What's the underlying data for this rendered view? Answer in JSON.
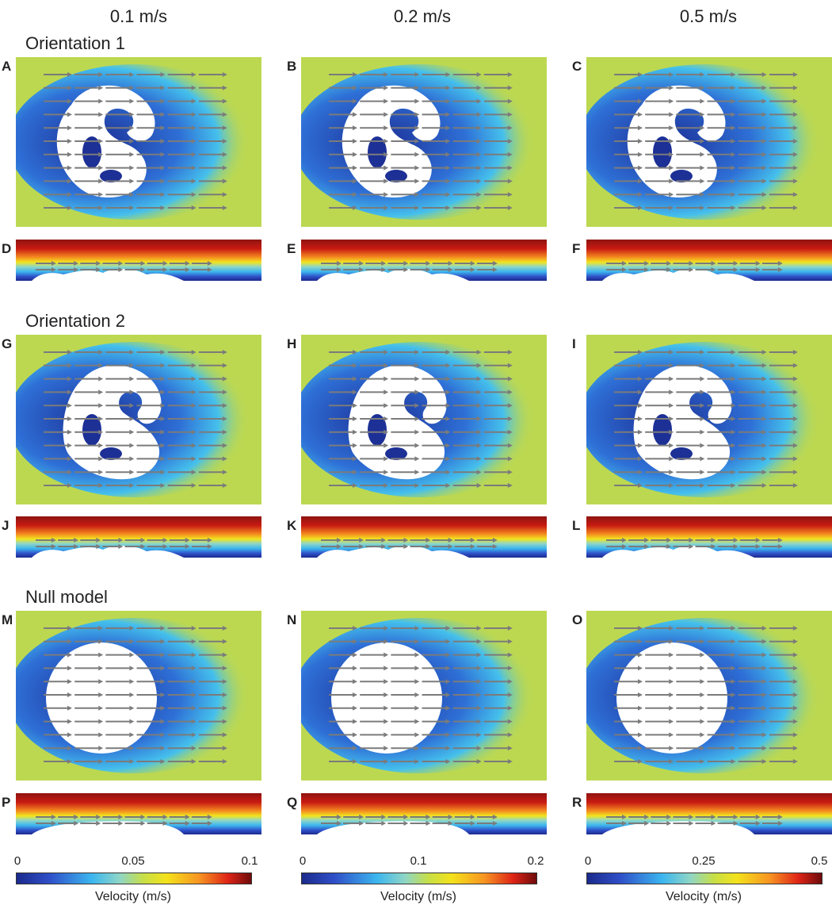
{
  "columns": [
    {
      "speed": "0.1 m/s"
    },
    {
      "speed": "0.2 m/s"
    },
    {
      "speed": "0.5 m/s"
    }
  ],
  "groups": [
    {
      "title": "Orientation 1",
      "top_labels": [
        "A",
        "B",
        "C"
      ],
      "side_labels": [
        "D",
        "E",
        "F"
      ],
      "shape": "coral1"
    },
    {
      "title": "Orientation 2",
      "top_labels": [
        "G",
        "H",
        "I"
      ],
      "side_labels": [
        "J",
        "K",
        "L"
      ],
      "shape": "coral2"
    },
    {
      "title": "Null model",
      "top_labels": [
        "M",
        "N",
        "O"
      ],
      "side_labels": [
        "P",
        "Q",
        "R"
      ],
      "shape": "circle"
    }
  ],
  "colorbars": [
    {
      "ticks": [
        "0",
        "0.05",
        "0.1"
      ],
      "max": 0.1,
      "title": "Velocity (m/s)"
    },
    {
      "ticks": [
        "0",
        "0.1",
        "0.2"
      ],
      "max": 0.2,
      "title": "Velocity (m/s)"
    },
    {
      "ticks": [
        "0",
        "0.25",
        "0.5"
      ],
      "max": 0.5,
      "title": "Velocity (m/s)"
    }
  ],
  "colors": {
    "field_bg": "#bcd851",
    "wake_deep": "#1d3096",
    "wake_mid": "#2e6fd6",
    "wake_edge": "#45c0ec",
    "arrow": "#7b7b7b",
    "side_top": "#c81a12",
    "side_bottom": "#1b2a8c"
  }
}
